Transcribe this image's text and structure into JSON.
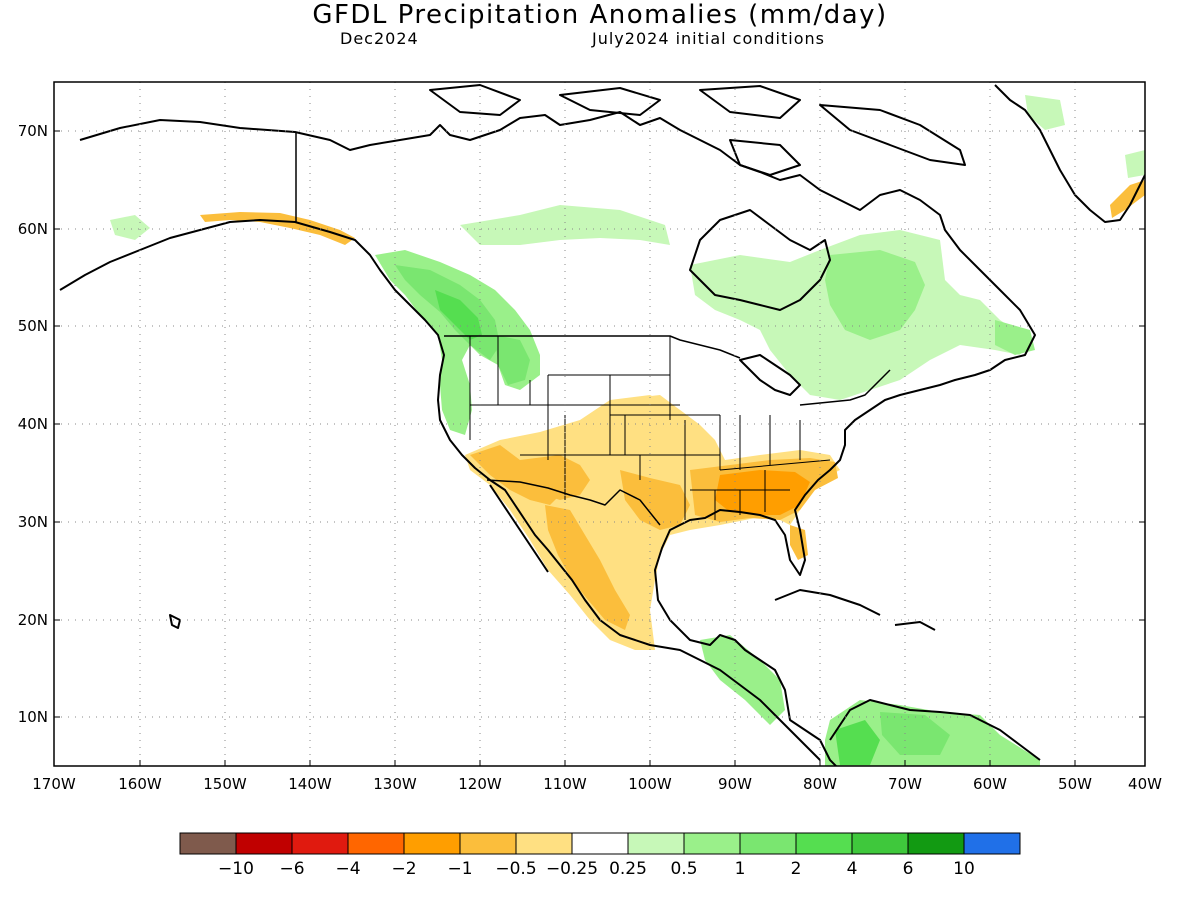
{
  "title": "GFDL Precipitation Anomalies (mm/day)",
  "subtitle_left": "Dec2024",
  "subtitle_right": "July2024 initial conditions",
  "lat_labels": [
    "10N",
    "20N",
    "30N",
    "40N",
    "50N",
    "60N",
    "70N"
  ],
  "lon_labels": [
    "170W",
    "160W",
    "150W",
    "140W",
    "130W",
    "120W",
    "110W",
    "100W",
    "90W",
    "80W",
    "70W",
    "60W",
    "50W",
    "40W"
  ],
  "colorbar": {
    "colors": [
      "#7f5a4c",
      "#c00000",
      "#e01a0f",
      "#ff6600",
      "#ff9e00",
      "#fbbe3c",
      "#ffe082",
      "#ffffff",
      "#c7f8b8",
      "#9af08a",
      "#7ae670",
      "#55de50",
      "#3fc83c",
      "#129a12",
      "#2070e8"
    ],
    "labels": [
      "-10",
      "-6",
      "-4",
      "-2",
      "-1",
      "-0.5",
      "-0.25",
      "0.25",
      "0.5",
      "1",
      "2",
      "4",
      "6",
      "10"
    ]
  },
  "legend_meaning": {
    "dry": "orange/brown shades",
    "wet": "green/blue shades"
  }
}
